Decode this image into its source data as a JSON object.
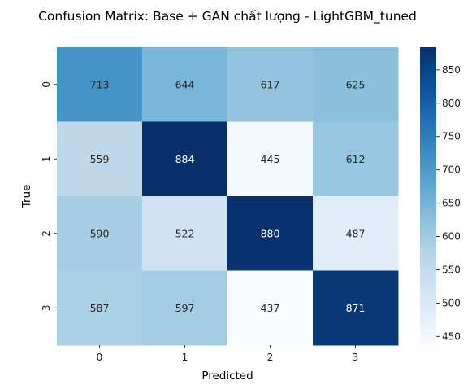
{
  "chart_data": {
    "type": "heatmap",
    "title": "Confusion Matrix: Base + GAN chất lượng - LightGBM_tuned",
    "xlabel": "Predicted",
    "ylabel": "True",
    "x_categories": [
      "0",
      "1",
      "2",
      "3"
    ],
    "y_categories": [
      "0",
      "1",
      "2",
      "3"
    ],
    "values": [
      [
        713,
        644,
        617,
        625
      ],
      [
        559,
        884,
        445,
        612
      ],
      [
        590,
        522,
        880,
        487
      ],
      [
        587,
        597,
        437,
        871
      ]
    ],
    "colormap": "Blues",
    "vmin": 437,
    "vmax": 884,
    "colorbar_ticks": [
      "450",
      "500",
      "550",
      "600",
      "650",
      "700",
      "750",
      "800",
      "850"
    ]
  }
}
